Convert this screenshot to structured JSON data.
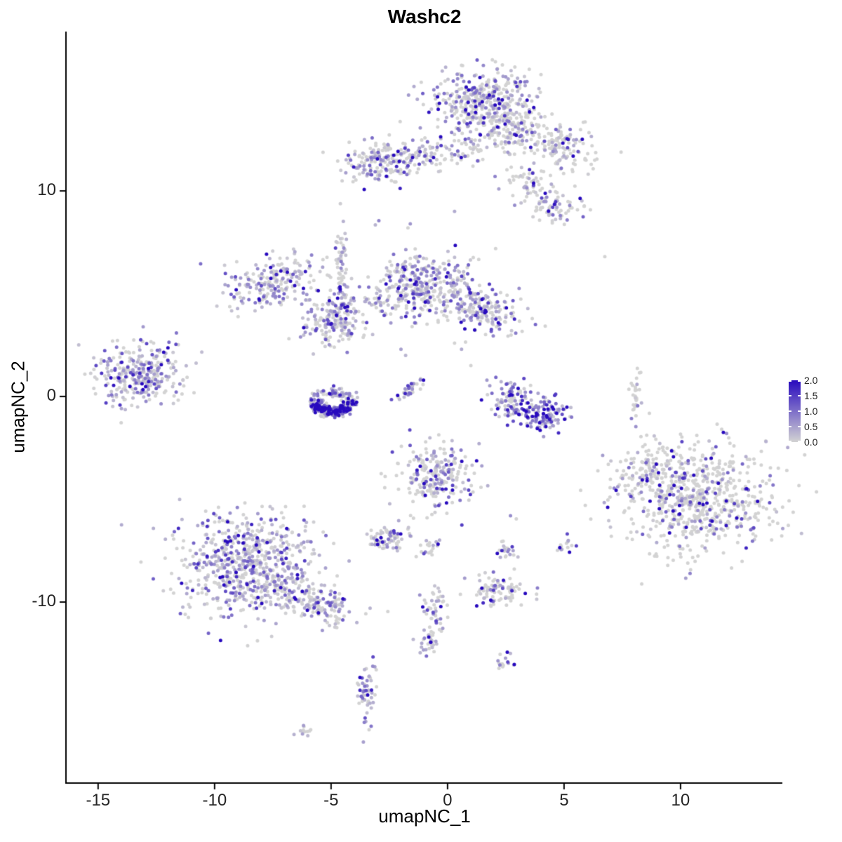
{
  "title": "Washc2",
  "axes": {
    "xlabel": "umapNC_1",
    "ylabel": "umapNC_2"
  },
  "chart_data": {
    "type": "scatter",
    "title": "Washc2",
    "xlabel": "umapNC_1",
    "ylabel": "umapNC_2",
    "x_range": [
      -16.35,
      14.37
    ],
    "y_range": [
      -18.77,
      17.75
    ],
    "x_ticks": [
      -15,
      -10,
      -5,
      0,
      5,
      10
    ],
    "x_tick_labels": [
      "-15",
      "-10",
      "-5",
      "0",
      "5",
      "10"
    ],
    "y_ticks": [
      10,
      0,
      -10
    ],
    "y_tick_labels": [
      "10",
      "0",
      "-10"
    ],
    "vmax": 2,
    "point_radius": 2.5,
    "legend": {
      "low_color": "#d3d3d3",
      "high_color": "#280abe",
      "ticks": [
        "2.0",
        "1.5",
        "1.0",
        "0.5",
        "0.0"
      ]
    },
    "clusters": [
      {
        "cx": 1.5,
        "cy": 14.2,
        "sx": 1.15,
        "sy": 0.85,
        "rot": 0,
        "n": 430,
        "frac": 0.5,
        "mean": 0.75
      },
      {
        "cx": 3.0,
        "cy": 13.0,
        "sx": 0.7,
        "sy": 0.6,
        "rot": 0,
        "n": 120,
        "frac": 0.35,
        "mean": 0.6
      },
      {
        "cx": 4.9,
        "cy": 12.2,
        "sx": 0.75,
        "sy": 0.55,
        "rot": -25,
        "n": 130,
        "frac": 0.35,
        "mean": 0.6
      },
      {
        "cx": 3.4,
        "cy": 10.3,
        "sx": 0.5,
        "sy": 0.45,
        "rot": 0,
        "n": 55,
        "frac": 0.45,
        "mean": 0.7
      },
      {
        "cx": 4.7,
        "cy": 9.2,
        "sx": 0.55,
        "sy": 0.4,
        "rot": 0,
        "n": 65,
        "frac": 0.55,
        "mean": 0.8
      },
      {
        "cx": -2.7,
        "cy": 11.4,
        "sx": 0.95,
        "sy": 0.5,
        "rot": 8,
        "n": 190,
        "frac": 0.55,
        "mean": 0.75
      },
      {
        "cx": -0.9,
        "cy": 11.9,
        "sx": 0.5,
        "sy": 0.35,
        "rot": 0,
        "n": 45,
        "frac": 0.4,
        "mean": 0.6
      },
      {
        "cx": 0.9,
        "cy": 12.1,
        "sx": 0.5,
        "sy": 0.4,
        "rot": 0,
        "n": 45,
        "frac": 0.4,
        "mean": 0.6
      },
      {
        "cx": -4.55,
        "cy": 6.4,
        "sx": 0.16,
        "sy": 0.95,
        "rot": 0,
        "n": 50,
        "frac": 0.65,
        "mean": 0.8
      },
      {
        "cx": -4.6,
        "cy": 4.3,
        "sx": 0.35,
        "sy": 0.6,
        "rot": 0,
        "n": 70,
        "frac": 0.6,
        "mean": 0.7
      },
      {
        "cx": -7.4,
        "cy": 5.5,
        "sx": 1.05,
        "sy": 0.6,
        "rot": 15,
        "n": 210,
        "frac": 0.6,
        "mean": 0.65
      },
      {
        "cx": -0.9,
        "cy": 5.4,
        "sx": 0.95,
        "sy": 0.75,
        "rot": 0,
        "n": 330,
        "frac": 0.6,
        "mean": 0.75
      },
      {
        "cx": 1.5,
        "cy": 4.2,
        "sx": 0.95,
        "sy": 0.5,
        "rot": -12,
        "n": 190,
        "frac": 0.55,
        "mean": 0.75
      },
      {
        "cx": -4.9,
        "cy": 3.5,
        "sx": 0.75,
        "sy": 0.5,
        "rot": 0,
        "n": 130,
        "frac": 0.55,
        "mean": 0.65
      },
      {
        "cx": -2.9,
        "cy": 4.6,
        "sx": 0.4,
        "sy": 0.3,
        "rot": 0,
        "n": 35,
        "frac": 0.5,
        "mean": 0.6
      },
      {
        "cx": -13.3,
        "cy": 1.0,
        "sx": 0.9,
        "sy": 0.8,
        "rot": 0,
        "n": 300,
        "frac": 0.65,
        "mean": 0.7
      },
      {
        "shape": "ring",
        "cx": -4.9,
        "cy": -0.25,
        "r0": 0.45,
        "r1": 1.0,
        "n": 310,
        "frac": 0.8,
        "mean": 0.95
      },
      {
        "cx": -1.55,
        "cy": 0.4,
        "sx": 0.5,
        "sy": 0.13,
        "rot": 40,
        "n": 32,
        "frac": 0.65,
        "mean": 0.8
      },
      {
        "cx": 2.7,
        "cy": -0.2,
        "sx": 0.5,
        "sy": 0.45,
        "rot": 0,
        "n": 95,
        "frac": 0.7,
        "mean": 0.85
      },
      {
        "cx": 4.1,
        "cy": -0.85,
        "sx": 0.55,
        "sy": 0.4,
        "rot": 0,
        "n": 120,
        "frac": 0.92,
        "mean": 1.35
      },
      {
        "cx": 8.1,
        "cy": 0.0,
        "sx": 0.13,
        "sy": 0.6,
        "rot": 0,
        "n": 32,
        "frac": 0.15,
        "mean": 0.4
      },
      {
        "cx": 10.6,
        "cy": -4.9,
        "sx": 1.65,
        "sy": 1.35,
        "rot": 0,
        "n": 720,
        "frac": 0.28,
        "mean": 0.9
      },
      {
        "cx": 8.3,
        "cy": -3.6,
        "sx": 0.45,
        "sy": 0.5,
        "rot": 0,
        "n": 60,
        "frac": 0.3,
        "mean": 0.7
      },
      {
        "cx": -0.5,
        "cy": -3.9,
        "sx": 0.8,
        "sy": 0.85,
        "rot": 0,
        "n": 230,
        "frac": 0.5,
        "mean": 0.75
      },
      {
        "cx": -2.55,
        "cy": -6.9,
        "sx": 0.45,
        "sy": 0.35,
        "rot": 0,
        "n": 75,
        "frac": 0.55,
        "mean": 0.7
      },
      {
        "cx": -0.9,
        "cy": -7.4,
        "sx": 0.25,
        "sy": 0.2,
        "rot": 0,
        "n": 20,
        "frac": 0.5,
        "mean": 0.6
      },
      {
        "cx": 2.5,
        "cy": -7.5,
        "sx": 0.25,
        "sy": 0.25,
        "rot": 0,
        "n": 22,
        "frac": 0.5,
        "mean": 0.7
      },
      {
        "cx": 5.05,
        "cy": -7.35,
        "sx": 0.2,
        "sy": 0.2,
        "rot": 0,
        "n": 14,
        "frac": 0.6,
        "mean": 0.7
      },
      {
        "cx": -8.6,
        "cy": -8.2,
        "sx": 1.45,
        "sy": 1.25,
        "rot": 0,
        "n": 680,
        "frac": 0.62,
        "mean": 0.68
      },
      {
        "cx": -5.8,
        "cy": -10.1,
        "sx": 1.1,
        "sy": 0.45,
        "rot": -18,
        "n": 170,
        "frac": 0.5,
        "mean": 0.6
      },
      {
        "cx": 2.3,
        "cy": -9.4,
        "sx": 0.6,
        "sy": 0.4,
        "rot": 0,
        "n": 90,
        "frac": 0.55,
        "mean": 0.7
      },
      {
        "cx": -0.55,
        "cy": -10.4,
        "sx": 0.3,
        "sy": 0.5,
        "rot": 0,
        "n": 45,
        "frac": 0.5,
        "mean": 0.7
      },
      {
        "cx": -0.8,
        "cy": -12.1,
        "sx": 0.25,
        "sy": 0.45,
        "rot": 0,
        "n": 30,
        "frac": 0.5,
        "mean": 0.7
      },
      {
        "cx": 2.4,
        "cy": -12.9,
        "sx": 0.2,
        "sy": 0.3,
        "rot": 0,
        "n": 16,
        "frac": 0.55,
        "mean": 0.8
      },
      {
        "cx": -3.5,
        "cy": -14.4,
        "sx": 0.18,
        "sy": 0.8,
        "rot": 0,
        "n": 55,
        "frac": 0.7,
        "mean": 0.8
      },
      {
        "cx": -6.1,
        "cy": -16.2,
        "sx": 0.25,
        "sy": 0.15,
        "rot": 0,
        "n": 12,
        "frac": 0.3,
        "mean": 0.4
      }
    ],
    "singles": [
      {
        "x": -10.6,
        "y": 6.45,
        "v": 1.0
      },
      {
        "x": 6.75,
        "y": 6.8,
        "v": 0
      },
      {
        "x": 6.9,
        "y": -3.3,
        "v": 0
      },
      {
        "x": 2.7,
        "y": -5.8,
        "v": 0.7
      },
      {
        "x": 2.95,
        "y": -5.95,
        "v": 0
      },
      {
        "x": -2.95,
        "y": 8.55,
        "v": 0.8
      },
      {
        "x": -3.1,
        "y": 8.35,
        "v": 0.3
      },
      {
        "x": -1.6,
        "y": 8.4,
        "v": 0.6
      },
      {
        "x": -1.7,
        "y": 8.2,
        "v": 0
      },
      {
        "x": 0.3,
        "y": 9.0,
        "v": 0.4
      },
      {
        "x": 2.2,
        "y": 10.1,
        "v": 0.5
      },
      {
        "x": -2.0,
        "y": 2.3,
        "v": 0.5
      },
      {
        "x": -1.8,
        "y": 2.0,
        "v": 0.3
      },
      {
        "x": 0.3,
        "y": 2.6,
        "v": 0
      },
      {
        "x": 0.6,
        "y": 2.3,
        "v": 0.4
      },
      {
        "x": 1.0,
        "y": 1.5,
        "v": 0
      }
    ]
  }
}
